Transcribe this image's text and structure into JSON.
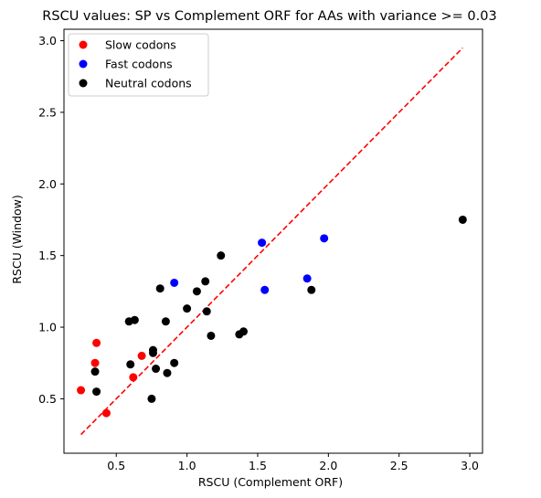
{
  "chart_data": {
    "type": "scatter",
    "title": "RSCU values: SP vs Complement ORF for AAs with variance >= 0.03",
    "xlabel": "RSCU (Complement ORF)",
    "ylabel": "RSCU (Window)",
    "xlim": [
      0.13,
      3.09
    ],
    "ylim": [
      0.12,
      3.08
    ],
    "xticks": [
      0.5,
      1.0,
      1.5,
      2.0,
      2.5,
      3.0
    ],
    "yticks": [
      0.5,
      1.0,
      1.5,
      2.0,
      2.5,
      3.0
    ],
    "xtick_labels": [
      "0.5",
      "1.0",
      "1.5",
      "2.0",
      "2.5",
      "3.0"
    ],
    "ytick_labels": [
      "0.5",
      "1.0",
      "1.5",
      "2.0",
      "2.5",
      "3.0"
    ],
    "grid": false,
    "legend_position": "top-left",
    "reference_line": {
      "style": "dashed",
      "color": "#ff0000",
      "x": [
        0.25,
        2.95
      ],
      "y": [
        0.25,
        2.95
      ]
    },
    "series": [
      {
        "name": "Slow codons",
        "color": "#ff0000",
        "points": [
          [
            0.25,
            0.56
          ],
          [
            0.35,
            0.75
          ],
          [
            0.36,
            0.89
          ],
          [
            0.43,
            0.4
          ],
          [
            0.62,
            0.65
          ],
          [
            0.68,
            0.8
          ]
        ]
      },
      {
        "name": "Fast codons",
        "color": "#0000ff",
        "points": [
          [
            0.91,
            1.31
          ],
          [
            1.53,
            1.59
          ],
          [
            1.55,
            1.26
          ],
          [
            1.85,
            1.34
          ],
          [
            1.97,
            1.62
          ]
        ]
      },
      {
        "name": "Neutral codons",
        "color": "#000000",
        "points": [
          [
            0.35,
            0.69
          ],
          [
            0.36,
            0.55
          ],
          [
            0.59,
            1.04
          ],
          [
            0.6,
            0.74
          ],
          [
            0.63,
            1.05
          ],
          [
            0.75,
            0.5
          ],
          [
            0.76,
            0.82
          ],
          [
            0.76,
            0.84
          ],
          [
            0.78,
            0.71
          ],
          [
            0.81,
            1.27
          ],
          [
            0.85,
            1.04
          ],
          [
            0.86,
            0.68
          ],
          [
            0.91,
            0.75
          ],
          [
            1.0,
            1.13
          ],
          [
            1.07,
            1.25
          ],
          [
            1.13,
            1.32
          ],
          [
            1.14,
            1.11
          ],
          [
            1.17,
            0.94
          ],
          [
            1.24,
            1.5
          ],
          [
            1.37,
            0.95
          ],
          [
            1.4,
            0.97
          ],
          [
            1.88,
            1.26
          ],
          [
            2.95,
            1.75
          ]
        ]
      }
    ]
  }
}
